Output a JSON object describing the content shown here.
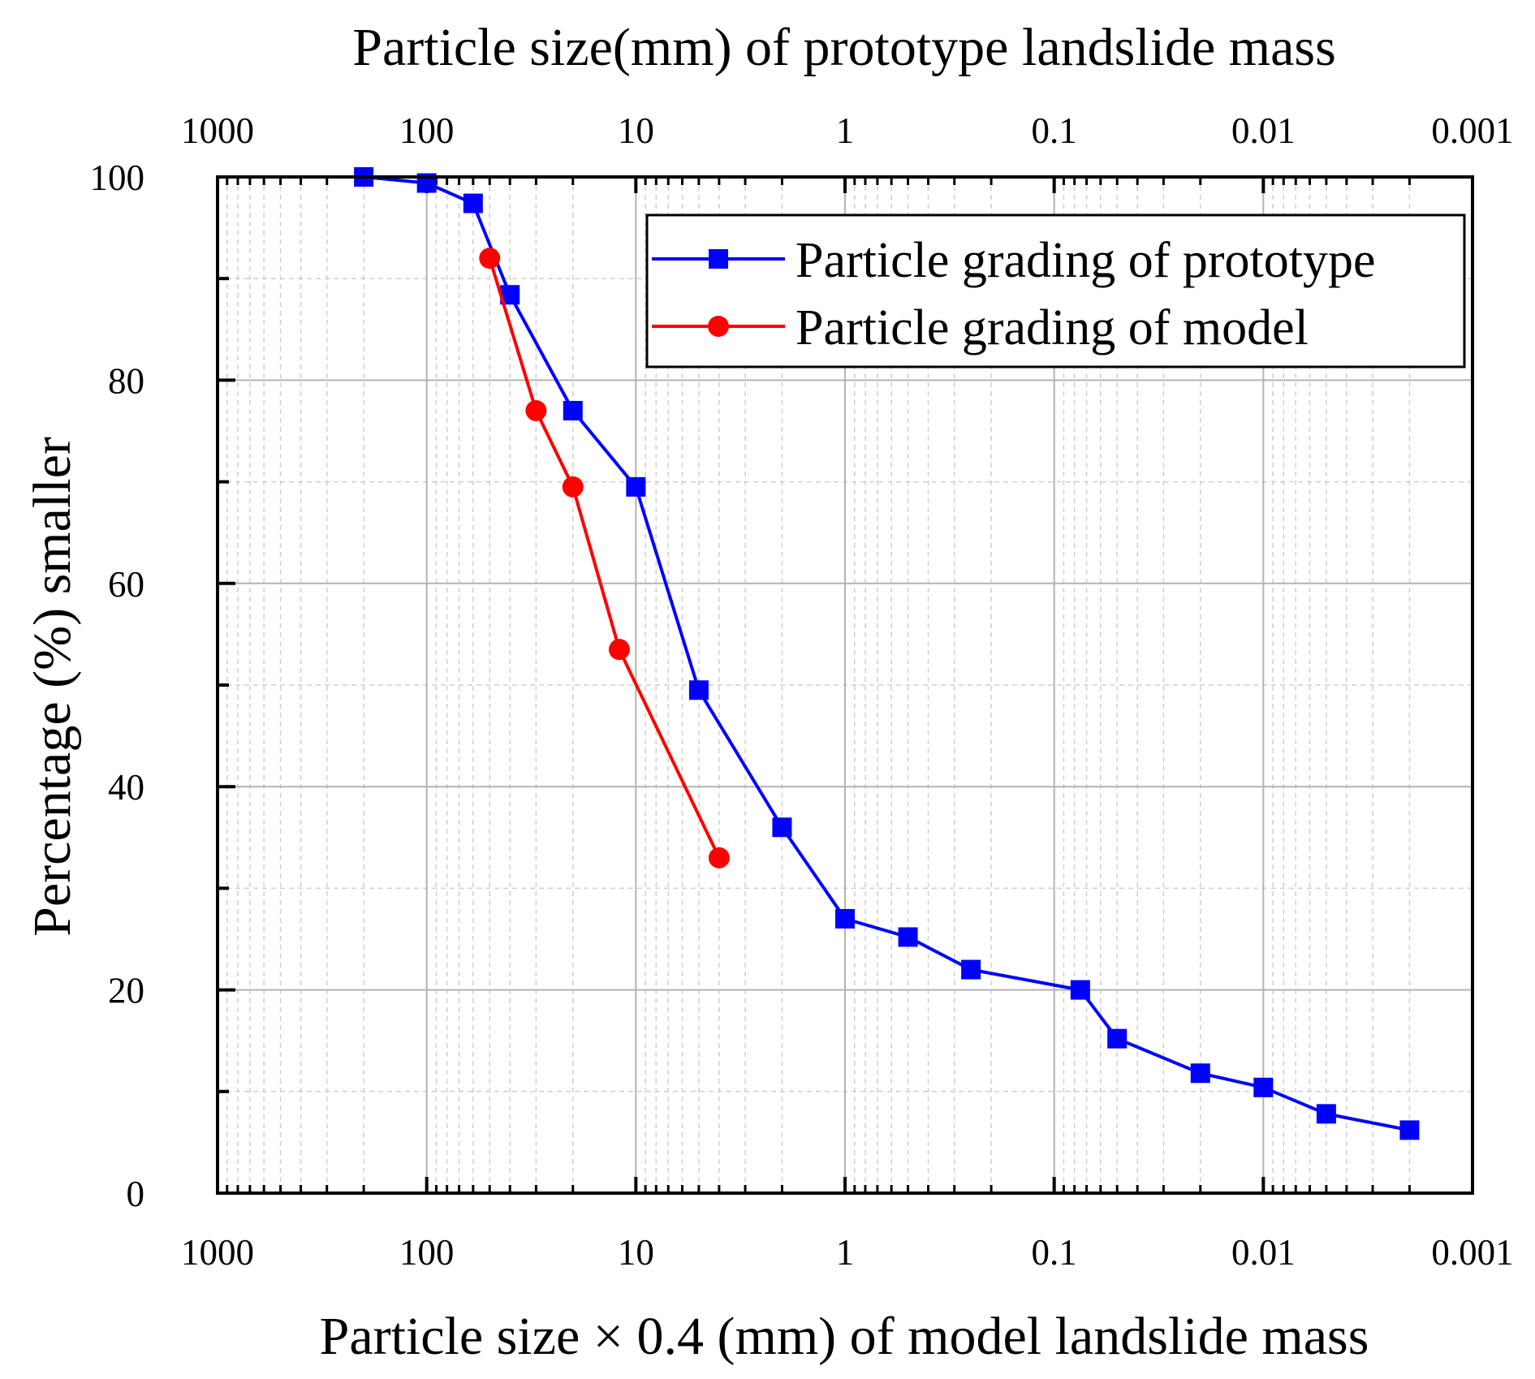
{
  "chart_data": {
    "type": "line",
    "x_scale": "log",
    "x_reversed": true,
    "xlim": [
      1000,
      0.001
    ],
    "ylim": [
      0,
      100
    ],
    "x_ticks": [
      1000,
      100,
      10,
      1,
      0.1,
      0.01,
      0.001
    ],
    "x_tick_labels": [
      "1000",
      "100",
      "10",
      "1",
      "0.1",
      "0.01",
      "0.001"
    ],
    "y_ticks": [
      0,
      20,
      40,
      60,
      80,
      100
    ],
    "y_tick_labels": [
      "0",
      "20",
      "40",
      "60",
      "80",
      "100"
    ],
    "top_xlabel": "Particle size(mm) of prototype landslide mass",
    "xlabel": "Particle size × 0.4 (mm) of model landslide mass",
    "ylabel": "Percentage (%) smaller",
    "grid": true,
    "legend_position": "top-right",
    "series": [
      {
        "name": "Particle grading of prototype",
        "color": "#0000ff",
        "marker": "square",
        "x": [
          200,
          100,
          60,
          40,
          20,
          10,
          5,
          2,
          1,
          0.5,
          0.25,
          0.075,
          0.05,
          0.02,
          0.01,
          0.005,
          0.002
        ],
        "y": [
          100,
          99.4,
          97.4,
          88.4,
          77,
          69.5,
          49.5,
          36,
          27,
          25.2,
          22,
          20,
          15.2,
          11.8,
          10.4,
          7.8,
          6.2
        ]
      },
      {
        "name": "Particle grading of model",
        "color": "#ff0000",
        "marker": "circle",
        "x": [
          50,
          30,
          20,
          12,
          4
        ],
        "y": [
          92,
          77,
          69.5,
          53.5,
          33
        ]
      }
    ]
  }
}
